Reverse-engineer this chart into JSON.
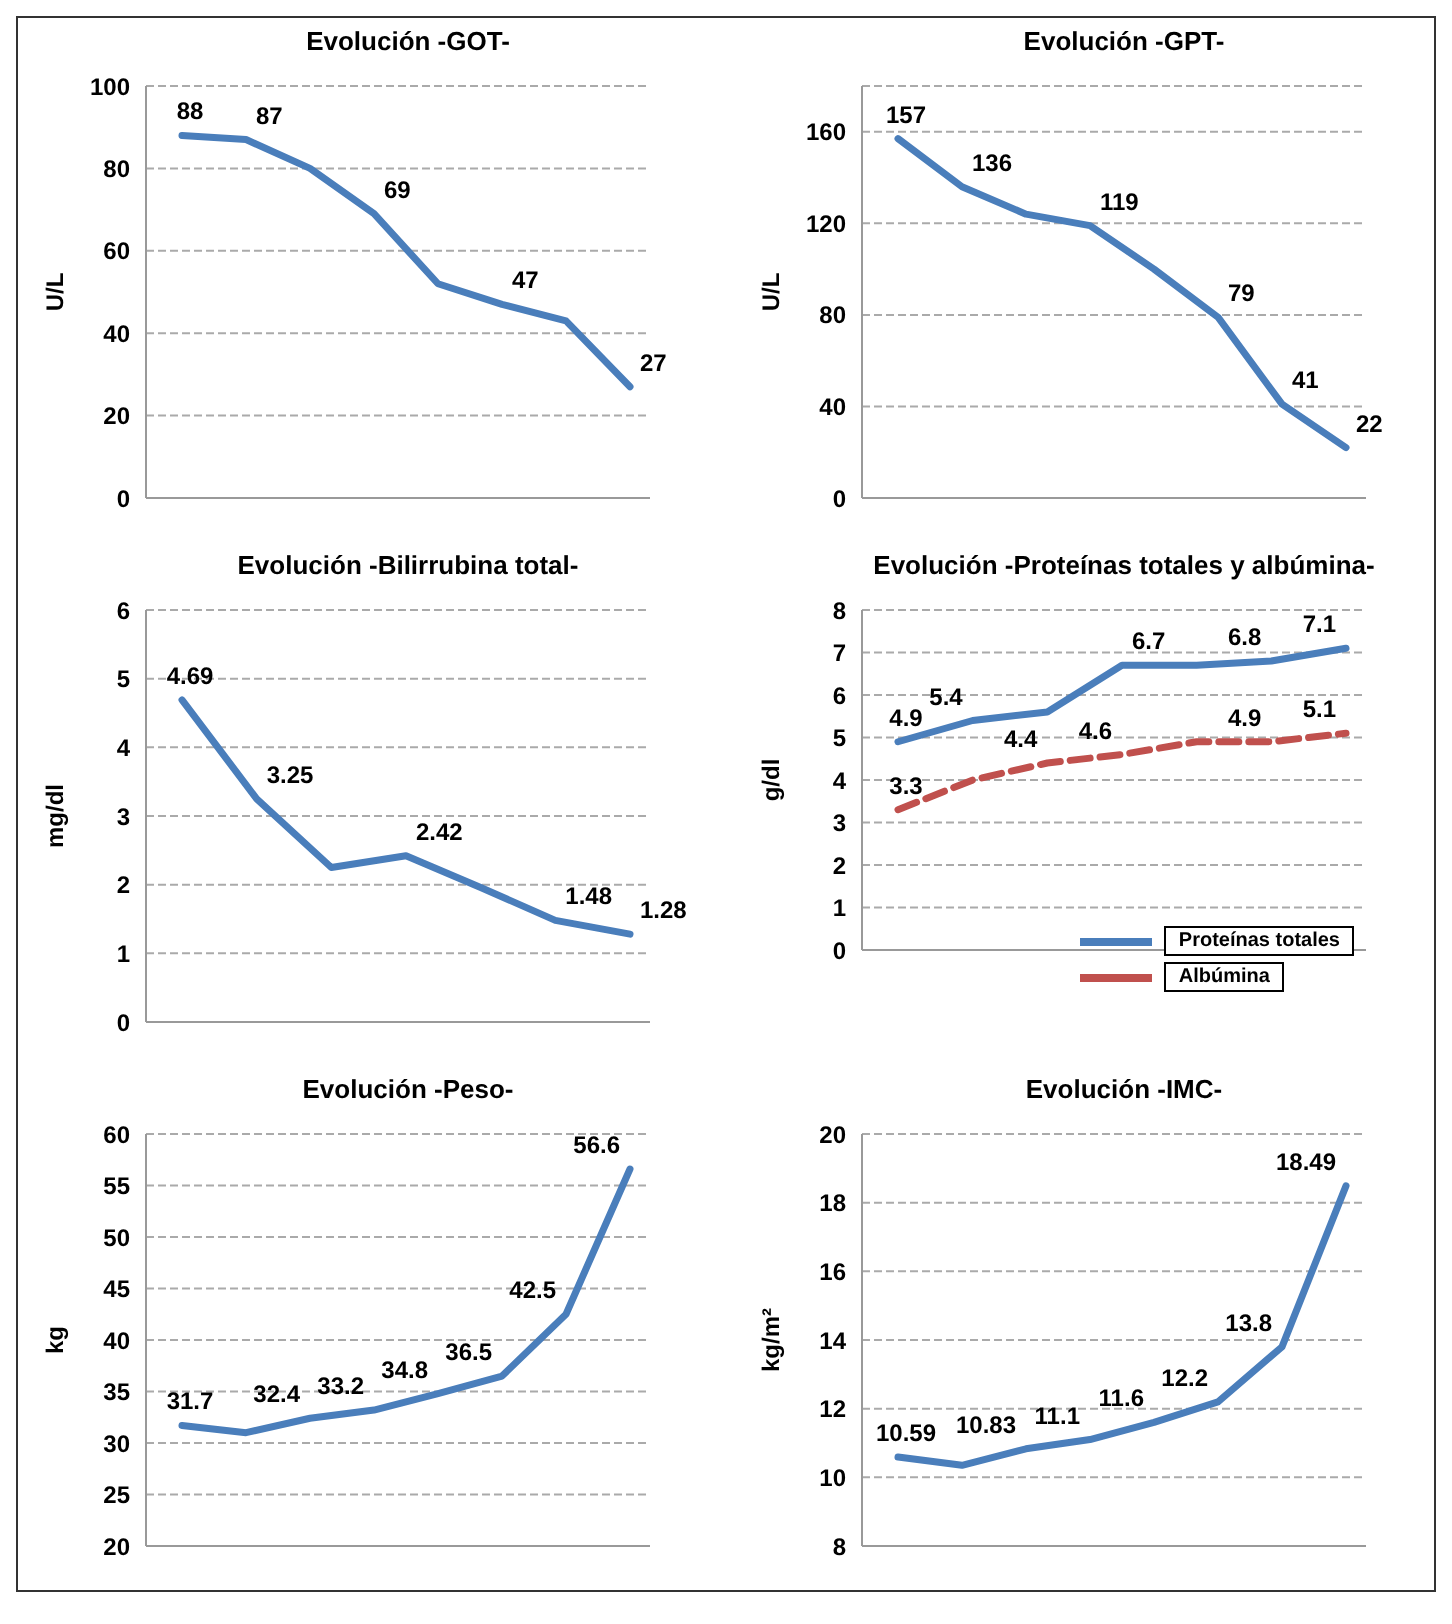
{
  "chart_data": [
    {
      "type": "line",
      "title": "Evolución -GOT-",
      "ylabel": "U/L",
      "categories": [
        null,
        null,
        null,
        null,
        null,
        null,
        null,
        null
      ],
      "ylim": [
        0,
        100
      ],
      "yticks": [
        0,
        20,
        40,
        60,
        80,
        100
      ],
      "grid": "y",
      "tick_labels": "y",
      "legend": false,
      "marker": "none",
      "series": [
        {
          "color": "#4a7ebb",
          "values": [
            88,
            87,
            80,
            69,
            52,
            47,
            43,
            27
          ],
          "value_labels": [
            "88",
            "87",
            null,
            "69",
            null,
            "47",
            null,
            "27"
          ]
        }
      ]
    },
    {
      "type": "line",
      "title": "Evolución -GPT-",
      "ylabel": "U/L",
      "categories": [
        null,
        null,
        null,
        null,
        null,
        null,
        null,
        null
      ],
      "ylim": [
        0,
        180
      ],
      "yticks": [
        0,
        40,
        80,
        120,
        160
      ],
      "grid": "y",
      "tick_labels": "y",
      "legend": false,
      "marker": "none",
      "series": [
        {
          "color": "#4a7ebb",
          "values": [
            157,
            136,
            124,
            119,
            100,
            79,
            41,
            22
          ],
          "value_labels": [
            "157",
            "136",
            null,
            "119",
            null,
            "79",
            "41",
            "22"
          ]
        }
      ]
    },
    {
      "type": "line",
      "title": "Evolución -Bilirrubina total-",
      "ylabel": "mg/dl",
      "categories": [
        null,
        null,
        null,
        null,
        null,
        null,
        null
      ],
      "ylim": [
        0,
        6
      ],
      "yticks": [
        0,
        1,
        2,
        3,
        4,
        5,
        6
      ],
      "grid": "y",
      "tick_labels": "y",
      "legend": false,
      "marker": "none",
      "series": [
        {
          "color": "#4a7ebb",
          "values": [
            4.69,
            3.25,
            2.25,
            2.42,
            1.96,
            1.48,
            1.28
          ],
          "value_labels": [
            "4.69",
            "3.25",
            null,
            "2.42",
            null,
            "1.48",
            "1.28"
          ]
        }
      ]
    },
    {
      "type": "line",
      "title": "Evolución -Proteínas totales y albúmina-",
      "ylabel": "g/dl",
      "categories": [
        null,
        null,
        null,
        null,
        null,
        null,
        null
      ],
      "ylim": [
        0,
        8
      ],
      "yticks": [
        0,
        1,
        2,
        3,
        4,
        5,
        6,
        7,
        8
      ],
      "grid": "y",
      "tick_labels": "y",
      "legend": "bottom right",
      "marker": "none",
      "series": [
        {
          "name": "Proteínas totales",
          "color": "#4a7ebb",
          "line_style": "solid",
          "values": [
            4.9,
            5.4,
            5.6,
            6.7,
            6.7,
            6.8,
            7.1
          ],
          "value_labels": [
            "4.9",
            "5.4",
            null,
            "6.7",
            null,
            "6.8",
            "7.1"
          ]
        },
        {
          "name": "Albúmina",
          "color": "#c0504d",
          "line_style": "dashed",
          "values": [
            3.3,
            4.0,
            4.4,
            4.6,
            4.9,
            4.9,
            5.1
          ],
          "value_labels": [
            "3.3",
            null,
            "4.4",
            "4.6",
            null,
            "4.9",
            "5.1"
          ]
        }
      ]
    },
    {
      "type": "line",
      "title": "Evolución -Peso-",
      "ylabel": "kg",
      "categories": [
        null,
        null,
        null,
        null,
        null,
        null,
        null,
        null
      ],
      "ylim": [
        20,
        60
      ],
      "yticks": [
        20,
        25,
        30,
        35,
        40,
        45,
        50,
        55,
        60
      ],
      "grid": "y",
      "tick_labels": "y",
      "legend": false,
      "marker": "none",
      "series": [
        {
          "color": "#4a7ebb",
          "values": [
            31.7,
            31.0,
            32.4,
            33.2,
            34.8,
            36.5,
            42.5,
            56.6
          ],
          "value_labels": [
            "31.7",
            null,
            "32.4",
            "33.2",
            "34.8",
            "36.5",
            "42.5",
            "56.6"
          ]
        }
      ]
    },
    {
      "type": "line",
      "title": "Evolución -IMC-",
      "ylabel": "kg/m²",
      "categories": [
        null,
        null,
        null,
        null,
        null,
        null,
        null,
        null
      ],
      "ylim": [
        8,
        20
      ],
      "yticks": [
        8,
        10,
        12,
        14,
        16,
        18,
        20
      ],
      "grid": "y",
      "tick_labels": "y",
      "legend": false,
      "marker": "none",
      "series": [
        {
          "color": "#4a7ebb",
          "values": [
            10.59,
            10.35,
            10.83,
            11.1,
            11.6,
            12.2,
            13.8,
            18.49
          ],
          "value_labels": [
            "10.59",
            null,
            "10.83",
            "11.1",
            "11.6",
            "12.2",
            "13.8",
            "18.49"
          ]
        }
      ]
    }
  ]
}
